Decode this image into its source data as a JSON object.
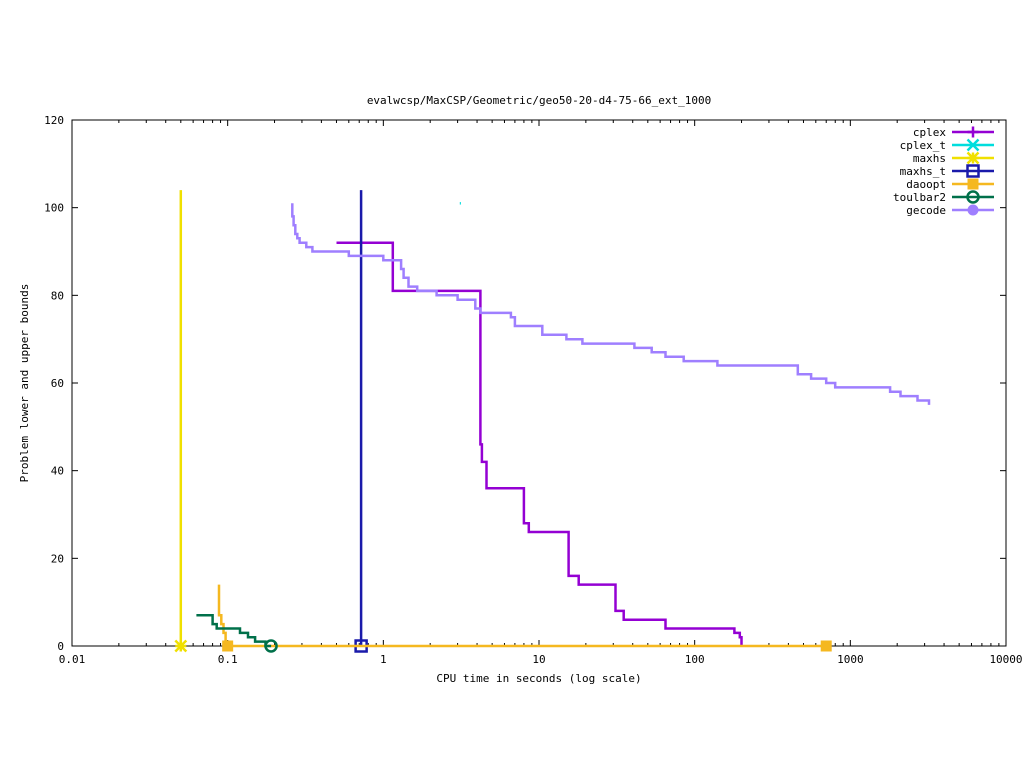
{
  "chart_data": {
    "type": "line",
    "title": "evalwcsp/MaxCSP/Geometric/geo50-20-d4-75-66_ext_1000",
    "xlabel": "CPU time in seconds (log scale)",
    "ylabel": "Problem lower and upper bounds",
    "x_scale": "log",
    "xlim": [
      0.01,
      10000
    ],
    "ylim": [
      0,
      120
    ],
    "x_ticks": [
      {
        "value": 0.01,
        "label": "0.01"
      },
      {
        "value": 0.1,
        "label": "0.1"
      },
      {
        "value": 1,
        "label": "1"
      },
      {
        "value": 10,
        "label": "10"
      },
      {
        "value": 100,
        "label": "100"
      },
      {
        "value": 1000,
        "label": "1000"
      },
      {
        "value": 10000,
        "label": "10000"
      }
    ],
    "y_ticks": [
      {
        "value": 0,
        "label": "0"
      },
      {
        "value": 20,
        "label": "20"
      },
      {
        "value": 40,
        "label": "40"
      },
      {
        "value": 60,
        "label": "60"
      },
      {
        "value": 80,
        "label": "80"
      },
      {
        "value": 100,
        "label": "100"
      },
      {
        "value": 120,
        "label": "120"
      }
    ],
    "grid": false,
    "legend_position": "top-right",
    "series": [
      {
        "name": "cplex",
        "color": "#9400d3",
        "marker": "plus",
        "points": [
          [
            0.5,
            92
          ],
          [
            1.15,
            92
          ],
          [
            1.15,
            81
          ],
          [
            4.2,
            81
          ],
          [
            4.2,
            46
          ],
          [
            4.3,
            46
          ],
          [
            4.3,
            42
          ],
          [
            4.6,
            42
          ],
          [
            4.6,
            36
          ],
          [
            8.0,
            36
          ],
          [
            8.0,
            28
          ],
          [
            8.6,
            28
          ],
          [
            8.6,
            26
          ],
          [
            15.5,
            26
          ],
          [
            15.5,
            16
          ],
          [
            18.0,
            16
          ],
          [
            18.0,
            14
          ],
          [
            31,
            14
          ],
          [
            31,
            8
          ],
          [
            35,
            8
          ],
          [
            35,
            6
          ],
          [
            65,
            6
          ],
          [
            65,
            4
          ],
          [
            180,
            4
          ],
          [
            180,
            3
          ],
          [
            195,
            3
          ],
          [
            195,
            2
          ],
          [
            200,
            2
          ],
          [
            200,
            0
          ]
        ],
        "marker_points": []
      },
      {
        "name": "cplex_t",
        "color": "#00dddd",
        "marker": "x",
        "points": [
          [
            3.1,
            101
          ],
          [
            3.15,
            101
          ]
        ],
        "marker_points": []
      },
      {
        "name": "maxhs",
        "color": "#f0e000",
        "marker": "star",
        "points": [
          [
            0.05,
            104
          ],
          [
            0.05,
            0
          ]
        ],
        "marker_points": [
          [
            0.05,
            0
          ]
        ]
      },
      {
        "name": "maxhs_t",
        "color": "#1a1aaa",
        "marker": "square",
        "points": [
          [
            0.72,
            104
          ],
          [
            0.72,
            0
          ]
        ],
        "marker_points": [
          [
            0.72,
            0
          ]
        ]
      },
      {
        "name": "daoopt",
        "color": "#f5b820",
        "marker": "filled-square",
        "points": [
          [
            0.088,
            14
          ],
          [
            0.088,
            7
          ],
          [
            0.091,
            7
          ],
          [
            0.091,
            5
          ],
          [
            0.094,
            5
          ],
          [
            0.094,
            3
          ],
          [
            0.097,
            3
          ],
          [
            0.097,
            1
          ],
          [
            0.1,
            1
          ],
          [
            0.1,
            0
          ],
          [
            700,
            0
          ]
        ],
        "marker_points": [
          [
            0.1,
            0
          ],
          [
            700,
            0
          ]
        ]
      },
      {
        "name": "toulbar2",
        "color": "#00704a",
        "marker": "circle",
        "points": [
          [
            0.063,
            7
          ],
          [
            0.08,
            7
          ],
          [
            0.08,
            5
          ],
          [
            0.085,
            5
          ],
          [
            0.085,
            4
          ],
          [
            0.12,
            4
          ],
          [
            0.12,
            3
          ],
          [
            0.135,
            3
          ],
          [
            0.135,
            2
          ],
          [
            0.15,
            2
          ],
          [
            0.15,
            1
          ],
          [
            0.175,
            1
          ],
          [
            0.175,
            0
          ],
          [
            0.19,
            0
          ]
        ],
        "marker_points": [
          [
            0.19,
            0
          ]
        ]
      },
      {
        "name": "gecode",
        "color": "#9f7fff",
        "marker": "filled-circle",
        "points": [
          [
            0.26,
            101
          ],
          [
            0.26,
            98
          ],
          [
            0.265,
            98
          ],
          [
            0.265,
            96
          ],
          [
            0.272,
            96
          ],
          [
            0.272,
            94
          ],
          [
            0.28,
            94
          ],
          [
            0.28,
            93
          ],
          [
            0.29,
            93
          ],
          [
            0.29,
            92
          ],
          [
            0.32,
            92
          ],
          [
            0.32,
            91
          ],
          [
            0.35,
            91
          ],
          [
            0.35,
            90
          ],
          [
            0.6,
            90
          ],
          [
            0.6,
            89
          ],
          [
            1.0,
            89
          ],
          [
            1.0,
            88
          ],
          [
            1.3,
            88
          ],
          [
            1.3,
            86
          ],
          [
            1.35,
            86
          ],
          [
            1.35,
            84
          ],
          [
            1.45,
            84
          ],
          [
            1.45,
            82
          ],
          [
            1.65,
            82
          ],
          [
            1.65,
            81
          ],
          [
            2.2,
            81
          ],
          [
            2.2,
            80
          ],
          [
            3.0,
            80
          ],
          [
            3.0,
            79
          ],
          [
            3.9,
            79
          ],
          [
            3.9,
            77
          ],
          [
            4.2,
            77
          ],
          [
            4.2,
            76
          ],
          [
            6.6,
            76
          ],
          [
            6.6,
            75
          ],
          [
            7.0,
            75
          ],
          [
            7.0,
            73
          ],
          [
            10.5,
            73
          ],
          [
            10.5,
            71
          ],
          [
            15.0,
            71
          ],
          [
            15.0,
            70
          ],
          [
            19.0,
            70
          ],
          [
            19.0,
            69
          ],
          [
            41.0,
            69
          ],
          [
            41.0,
            68
          ],
          [
            53.0,
            68
          ],
          [
            53.0,
            67
          ],
          [
            65.0,
            67
          ],
          [
            65.0,
            66
          ],
          [
            85.0,
            66
          ],
          [
            85.0,
            65
          ],
          [
            140.0,
            65
          ],
          [
            140.0,
            64
          ],
          [
            460.0,
            64
          ],
          [
            460.0,
            62
          ],
          [
            560.0,
            62
          ],
          [
            560.0,
            61
          ],
          [
            700.0,
            61
          ],
          [
            700.0,
            60
          ],
          [
            800.0,
            60
          ],
          [
            800.0,
            59
          ],
          [
            1800.0,
            59
          ],
          [
            1800.0,
            58
          ],
          [
            2100.0,
            58
          ],
          [
            2100.0,
            57
          ],
          [
            2700.0,
            57
          ],
          [
            2700.0,
            56
          ],
          [
            3200.0,
            56
          ],
          [
            3200.0,
            55
          ]
        ],
        "marker_points": []
      }
    ]
  }
}
